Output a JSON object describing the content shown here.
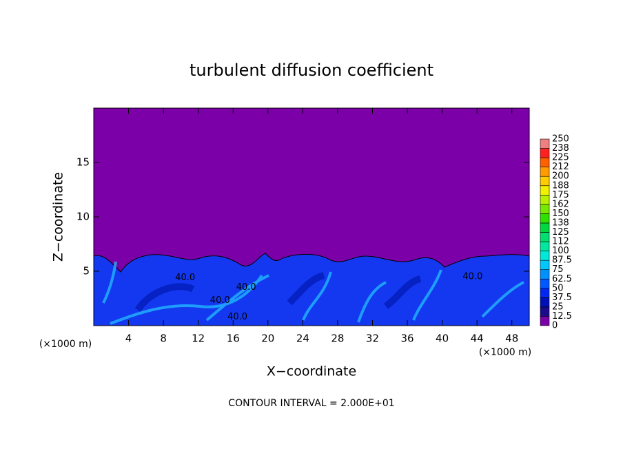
{
  "chart_data": {
    "type": "contour",
    "title": "turbulent diffusion coefficient",
    "x_label": "X−coordinate",
    "y_label": "Z−coordinate",
    "x_unit_left": "(×1000 m)",
    "x_unit_right": "(×1000 m)",
    "footer": "CONTOUR INTERVAL = 2.000E+01",
    "background_color": "#7b00a8",
    "xlim": [
      0,
      50
    ],
    "ylim": [
      0,
      20
    ],
    "xticks": [
      4,
      8,
      12,
      16,
      20,
      24,
      28,
      32,
      36,
      40,
      44,
      48
    ],
    "yticks": [
      5,
      10,
      15
    ],
    "contour_labels": [
      {
        "text": "40.0",
        "x": 10.5,
        "y": 4.4
      },
      {
        "text": "40.0",
        "x": 14.5,
        "y": 2.3
      },
      {
        "text": "40.0",
        "x": 17.5,
        "y": 3.5
      },
      {
        "text": "40.0",
        "x": 16.5,
        "y": 0.8
      },
      {
        "text": "40.0",
        "x": 43.5,
        "y": 4.5
      }
    ],
    "colorbar": {
      "levels": [
        0,
        {
          "value": 12.5,
          "label": "12.5"
        },
        25,
        {
          "value": 37.5,
          "label": "37.5"
        },
        50,
        {
          "value": 62.5,
          "label": "62.5"
        },
        75,
        {
          "value": 87.5,
          "label": "87.5"
        },
        100,
        {
          "value": 112.5,
          "label": "112"
        },
        125,
        {
          "value": 137.5,
          "label": "138"
        },
        150,
        {
          "value": 162.5,
          "label": "162"
        },
        175,
        {
          "value": 187.5,
          "label": "188"
        },
        200,
        {
          "value": 212.5,
          "label": "212"
        },
        225,
        {
          "value": 237.5,
          "label": "238"
        },
        250
      ],
      "colors": [
        "#7b00a8",
        "#1c0a8c",
        "#0010b8",
        "#0028f0",
        "#0058ff",
        "#0090ff",
        "#00c8ff",
        "#00e8d8",
        "#00e8a0",
        "#00e070",
        "#00d840",
        "#30e000",
        "#78e800",
        "#b8f000",
        "#f0f000",
        "#ffcc00",
        "#ff9c00",
        "#ff6000",
        "#ff2020",
        "#f08080"
      ]
    }
  }
}
